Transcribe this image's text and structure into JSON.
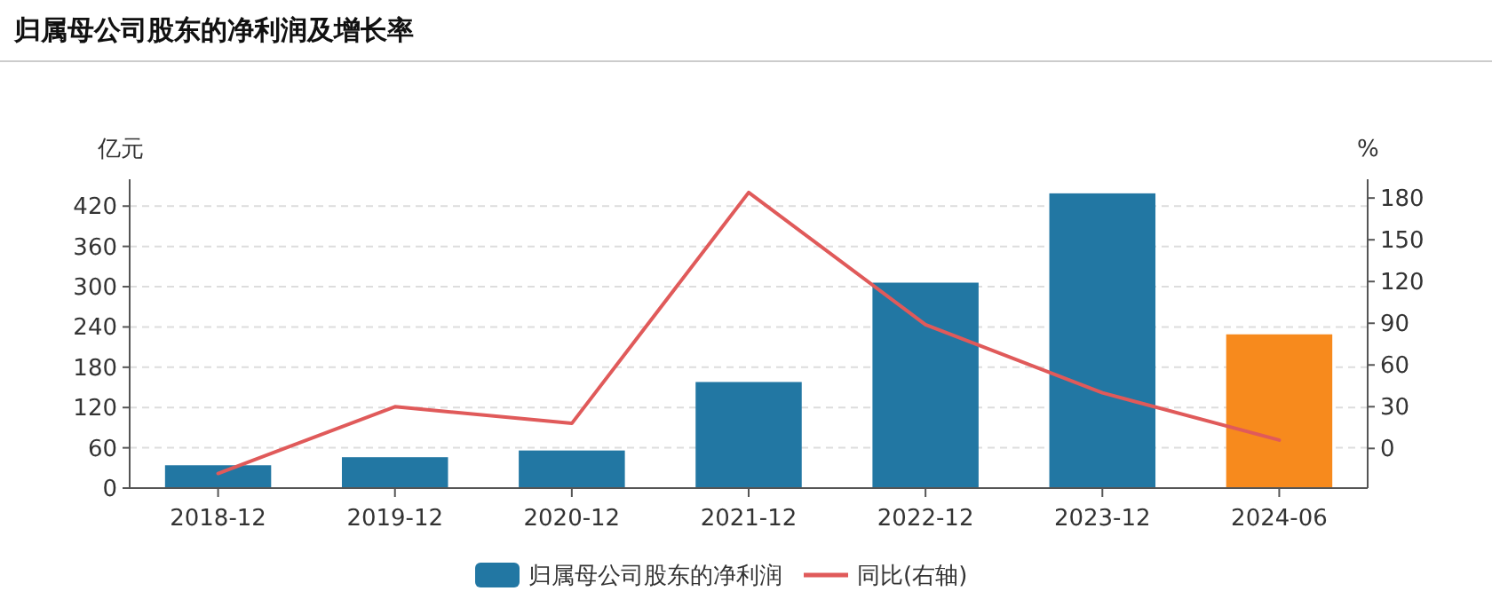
{
  "chart_data": {
    "type": "bar",
    "title": "归属母公司股东的净利润及增长率",
    "ylabel": "亿元",
    "y2label": "%",
    "categories": [
      "2018-12",
      "2019-12",
      "2020-12",
      "2021-12",
      "2022-12",
      "2023-12",
      "2024-06"
    ],
    "series": [
      {
        "name": "归属母公司股东的净利润",
        "type": "bar",
        "color": "#2277a3",
        "colors": [
          "#2277a3",
          "#2277a3",
          "#2277a3",
          "#2277a3",
          "#2277a3",
          "#2277a3",
          "#f78a1d"
        ],
        "values": [
          34,
          46,
          56,
          158,
          306,
          439,
          229
        ]
      },
      {
        "name": "同比(右轴)",
        "type": "line",
        "axis": "y2",
        "color": "#e05a5a",
        "values": [
          -18,
          30,
          18,
          184,
          89,
          40,
          6
        ]
      }
    ],
    "ylim": [
      0,
      460
    ],
    "yticks": [
      0,
      60,
      120,
      180,
      240,
      300,
      360,
      420
    ],
    "y2lim": [
      -28.5,
      193.5
    ],
    "y2ticks": [
      0,
      30,
      60,
      90,
      120,
      150,
      180
    ],
    "grid": "y",
    "legend": "bottom",
    "marker": "none",
    "line_style": "solid"
  }
}
